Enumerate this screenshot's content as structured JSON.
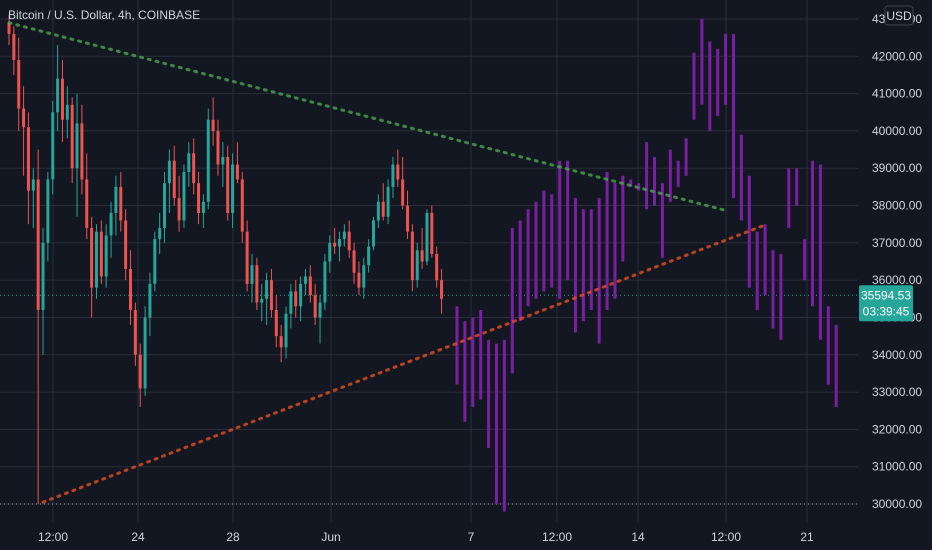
{
  "chart_data": {
    "type": "candlestick",
    "title": "Bitcoin / U.S. Dollar, 4h, COINBASE",
    "currency": "USD",
    "y_axis": {
      "ticks": [
        30000,
        31000,
        32000,
        33000,
        34000,
        35000,
        36000,
        37000,
        38000,
        39000,
        40000,
        41000,
        42000,
        43000
      ],
      "tick_labels": [
        "30000.00",
        "31000.00",
        "32000.00",
        "33000.00",
        "34000.00",
        "35000.00",
        "36000.00",
        "37000.00",
        "38000.00",
        "39000.00",
        "40000.00",
        "41000.00",
        "42000.00",
        "43000.00"
      ],
      "range": [
        29700,
        43400
      ]
    },
    "x_axis": {
      "tick_labels": [
        "12:00",
        "24",
        "28",
        "Jun",
        "7",
        "12:00",
        "14",
        "12:00",
        "21"
      ]
    },
    "last_price": {
      "value": "35594.53",
      "countdown": "03:39:45"
    },
    "horizontal_lines": [
      30000,
      35594.53
    ],
    "trendlines": [
      {
        "name": "descending resistance",
        "color": "#4caf50",
        "from": [
          0,
          42900
        ],
        "to": [
          148,
          37850
        ]
      },
      {
        "name": "ascending support",
        "color": "#f4511e",
        "from": [
          7,
          30050
        ],
        "to": [
          155,
          37450
        ]
      }
    ],
    "colors": {
      "up": "#26a69a",
      "down": "#ef5350",
      "projection": "#7b1fa2",
      "background": "#131722",
      "grid": "#2a2e39",
      "last_price": "#26a69a"
    },
    "ohlc": [
      [
        42900,
        43100,
        42300,
        42600
      ],
      [
        42600,
        42800,
        41500,
        41900
      ],
      [
        41900,
        42500,
        40000,
        40600
      ],
      [
        40600,
        41200,
        38800,
        40100
      ],
      [
        40100,
        40500,
        37500,
        38400
      ],
      [
        38400,
        39000,
        37400,
        38700
      ],
      [
        38700,
        39500,
        30000,
        35200
      ],
      [
        35200,
        37400,
        34000,
        37000
      ],
      [
        37000,
        38900,
        36500,
        38700
      ],
      [
        38700,
        40800,
        38300,
        40500
      ],
      [
        40500,
        42300,
        40000,
        41400
      ],
      [
        41400,
        41900,
        39700,
        40300
      ],
      [
        40300,
        41200,
        39800,
        40700
      ],
      [
        40700,
        40900,
        38600,
        39000
      ],
      [
        39000,
        41000,
        37700,
        40200
      ],
      [
        40200,
        40700,
        38300,
        38700
      ],
      [
        38700,
        39400,
        37100,
        37400
      ],
      [
        37400,
        37700,
        35000,
        35800
      ],
      [
        35800,
        37500,
        35500,
        37300
      ],
      [
        37300,
        37600,
        35900,
        36100
      ],
      [
        36100,
        37500,
        35800,
        37200
      ],
      [
        37200,
        38100,
        36600,
        37800
      ],
      [
        37800,
        38800,
        37200,
        38500
      ],
      [
        38500,
        38900,
        37300,
        37600
      ],
      [
        37600,
        37900,
        36000,
        36300
      ],
      [
        36300,
        36800,
        34800,
        35200
      ],
      [
        35200,
        35400,
        33700,
        34000
      ],
      [
        34000,
        34300,
        32600,
        33100
      ],
      [
        33100,
        35300,
        32900,
        35000
      ],
      [
        35000,
        36200,
        34500,
        35900
      ],
      [
        35900,
        37300,
        35700,
        37100
      ],
      [
        37100,
        37800,
        36700,
        37400
      ],
      [
        37400,
        38900,
        37000,
        38600
      ],
      [
        38600,
        39500,
        37800,
        39200
      ],
      [
        39200,
        39600,
        38000,
        38200
      ],
      [
        38200,
        38800,
        37300,
        37600
      ],
      [
        37600,
        39100,
        37400,
        38900
      ],
      [
        38900,
        39700,
        38500,
        39400
      ],
      [
        39400,
        39800,
        38300,
        38600
      ],
      [
        38600,
        38900,
        37500,
        37800
      ],
      [
        37800,
        38300,
        37400,
        38100
      ],
      [
        38100,
        40600,
        37900,
        40300
      ],
      [
        40300,
        40900,
        39600,
        40000
      ],
      [
        40000,
        40300,
        38800,
        39100
      ],
      [
        39100,
        39700,
        38500,
        39300
      ],
      [
        39300,
        39600,
        37600,
        37800
      ],
      [
        37800,
        39400,
        37400,
        39100
      ],
      [
        39100,
        39700,
        38600,
        38700
      ],
      [
        38700,
        38900,
        37000,
        37300
      ],
      [
        37300,
        37600,
        35700,
        35900
      ],
      [
        35900,
        36700,
        35400,
        36400
      ],
      [
        36400,
        36600,
        35200,
        35400
      ],
      [
        35400,
        35900,
        34900,
        35500
      ],
      [
        35500,
        36200,
        34800,
        36000
      ],
      [
        36000,
        36300,
        35000,
        35200
      ],
      [
        35200,
        35600,
        34200,
        34500
      ],
      [
        34500,
        34800,
        33800,
        34200
      ],
      [
        34200,
        35300,
        33900,
        35100
      ],
      [
        35100,
        35900,
        34700,
        35700
      ],
      [
        35700,
        36000,
        35000,
        35300
      ],
      [
        35300,
        36100,
        34900,
        35900
      ],
      [
        35900,
        36300,
        35600,
        36100
      ],
      [
        36100,
        36400,
        35400,
        35600
      ],
      [
        35600,
        35900,
        34800,
        35000
      ],
      [
        35000,
        35600,
        34300,
        35400
      ],
      [
        35400,
        36700,
        35200,
        36500
      ],
      [
        36500,
        37200,
        36200,
        37000
      ],
      [
        37000,
        37400,
        36700,
        36900
      ],
      [
        36900,
        37300,
        36500,
        37100
      ],
      [
        37100,
        37500,
        36900,
        37300
      ],
      [
        37300,
        37600,
        36600,
        36800
      ],
      [
        36800,
        37000,
        35900,
        36200
      ],
      [
        36200,
        36500,
        35600,
        35800
      ],
      [
        35800,
        36600,
        35500,
        36400
      ],
      [
        36400,
        37100,
        36200,
        36900
      ],
      [
        36900,
        37700,
        36800,
        37600
      ],
      [
        37600,
        38300,
        37400,
        38100
      ],
      [
        38100,
        38600,
        37600,
        37700
      ],
      [
        37700,
        38700,
        37500,
        38500
      ],
      [
        38500,
        39300,
        38200,
        39100
      ],
      [
        39100,
        39500,
        38500,
        38700
      ],
      [
        38700,
        39300,
        37900,
        38000
      ],
      [
        38000,
        38400,
        37100,
        37300
      ],
      [
        37300,
        37500,
        35700,
        36000
      ],
      [
        36000,
        37000,
        35800,
        36800
      ],
      [
        36800,
        37400,
        36300,
        36500
      ],
      [
        36500,
        37900,
        36400,
        37800
      ],
      [
        37800,
        38000,
        36600,
        36700
      ],
      [
        36700,
        36900,
        35800,
        36000
      ],
      [
        36000,
        36300,
        35100,
        35500
      ]
    ],
    "projection_bars": [
      [
        35300,
        33200
      ],
      [
        34900,
        32200
      ],
      [
        35000,
        32600
      ],
      [
        35200,
        32800
      ],
      [
        34400,
        31500
      ],
      [
        34300,
        30000
      ],
      [
        34400,
        29800
      ],
      [
        37400,
        33500
      ],
      [
        37600,
        34900
      ],
      [
        37900,
        35300
      ],
      [
        38100,
        35500
      ],
      [
        38400,
        35700
      ],
      [
        38300,
        35800
      ],
      [
        39200,
        35500
      ],
      [
        39200,
        36000
      ],
      [
        38200,
        34600
      ],
      [
        37900,
        34900
      ],
      [
        37900,
        35200
      ],
      [
        38200,
        34300
      ],
      [
        38900,
        35200
      ],
      [
        38600,
        35500
      ],
      [
        38800,
        36500
      ],
      [
        38700,
        38500
      ],
      [
        38600,
        38400
      ],
      [
        39700,
        37900
      ],
      [
        39300,
        38000
      ],
      [
        38600,
        36600
      ],
      [
        39500,
        38100
      ],
      [
        39200,
        38500
      ],
      [
        39800,
        38800
      ],
      [
        42100,
        40300
      ],
      [
        43000,
        40700
      ],
      [
        42400,
        40000
      ],
      [
        42200,
        40400
      ],
      [
        42600,
        40700
      ],
      [
        42600,
        38200
      ],
      [
        39900,
        37600
      ],
      [
        38800,
        35800
      ],
      [
        37300,
        35200
      ],
      [
        37500,
        35600
      ],
      [
        36800,
        34700
      ],
      [
        36700,
        34400
      ],
      [
        39000,
        37400
      ],
      [
        39000,
        38000
      ],
      [
        37100,
        36000
      ],
      [
        39200,
        35300
      ],
      [
        39100,
        34400
      ],
      [
        35300,
        33200
      ],
      [
        34800,
        32600
      ]
    ]
  }
}
